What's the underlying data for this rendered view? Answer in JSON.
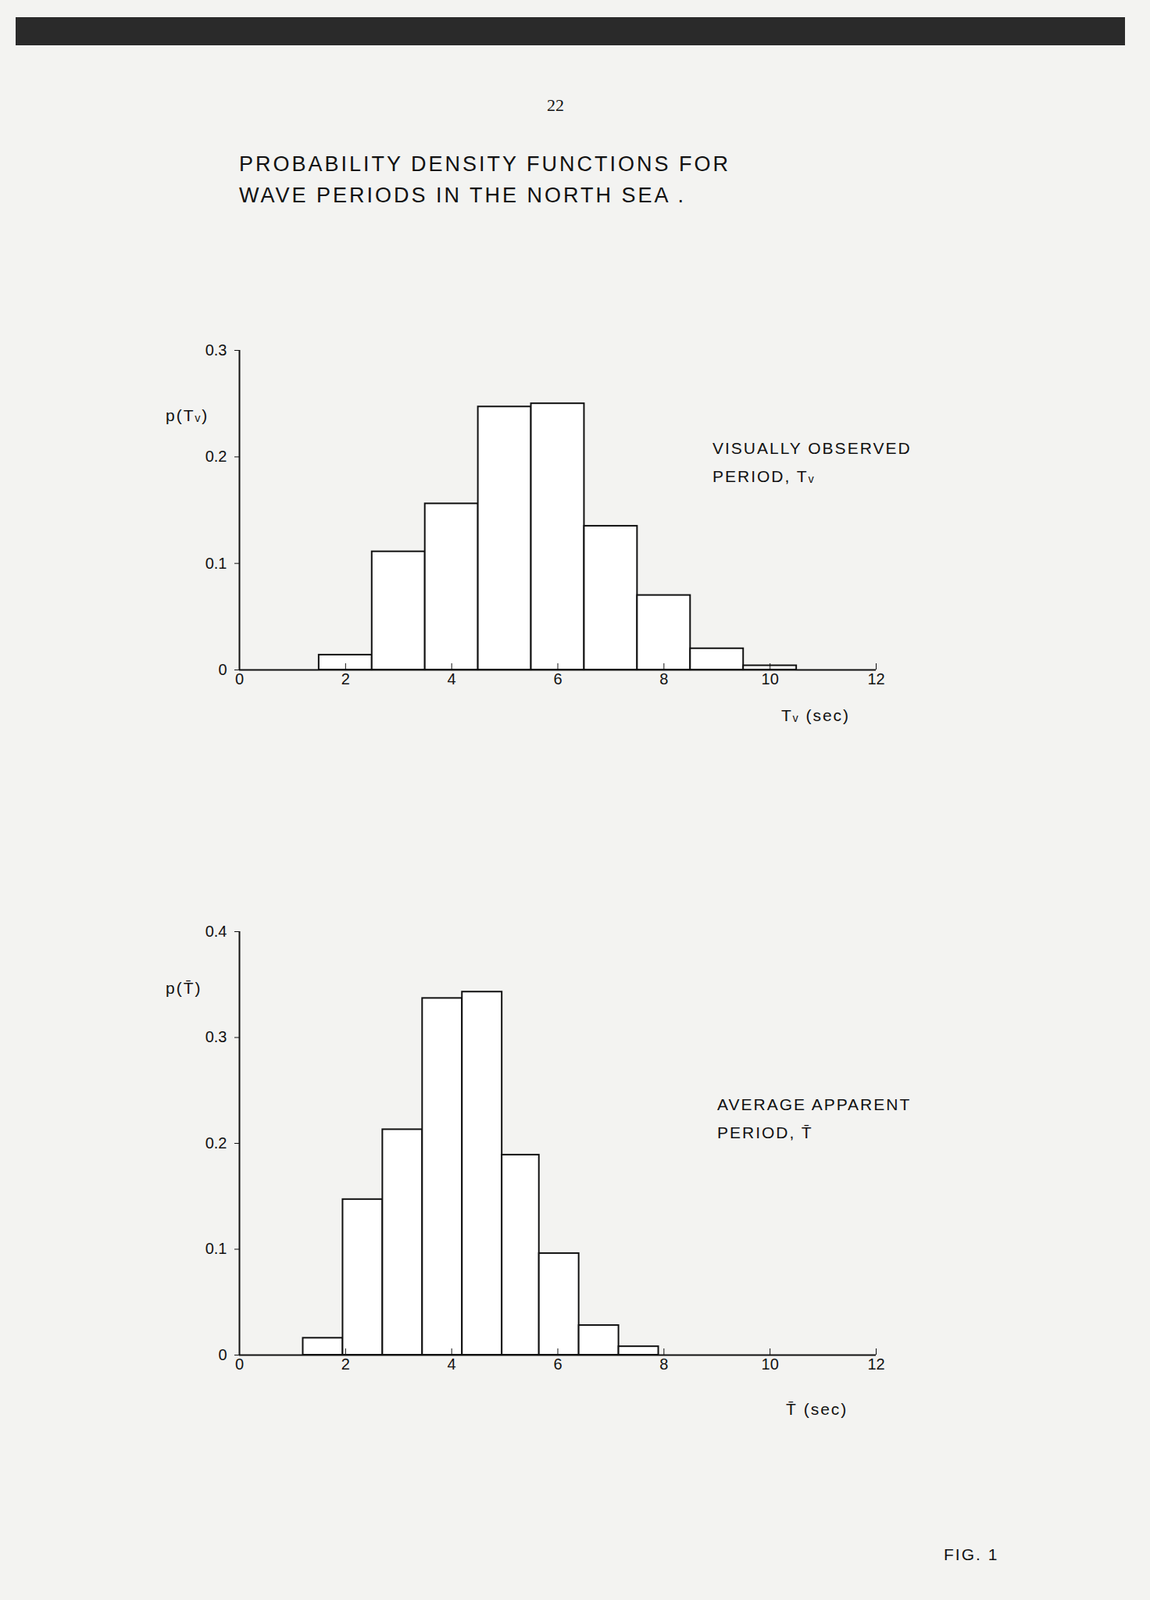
{
  "page_number": "22",
  "title": [
    "PROBABILITY  DENSITY  FUNCTIONS  FOR",
    "WAVE  PERIODS  IN  THE  NORTH  SEA ."
  ],
  "figure_label": "FIG. 1",
  "chart_data": [
    {
      "type": "histogram",
      "annotation": [
        "VISUALLY  OBSERVED",
        "PERIOD,  Tᵥ"
      ],
      "xlabel": "Tᵥ (sec)",
      "ylabel": "p(Tᵥ)",
      "bins": [
        1.5,
        2.5,
        3.5,
        4.5,
        5.5,
        6.5,
        7.5,
        8.5,
        9.5,
        10.5
      ],
      "values": [
        0.014,
        0.111,
        0.156,
        0.247,
        0.25,
        0.135,
        0.07,
        0.02,
        0.004
      ],
      "xlim": [
        0,
        12
      ],
      "xticks": [
        0,
        2,
        4,
        6,
        8,
        10,
        12
      ],
      "ylim": [
        0,
        0.3
      ],
      "yticks": [
        0,
        0.1,
        0.2,
        0.3
      ]
    },
    {
      "type": "histogram",
      "annotation": [
        "AVERAGE  APPARENT",
        "PERIOD,  T̄"
      ],
      "xlabel": "T̄ (sec)",
      "ylabel": "p(T̄)",
      "bins": [
        1.2,
        1.95,
        2.7,
        3.45,
        4.2,
        4.95,
        5.65,
        6.4,
        7.15,
        7.9
      ],
      "values": [
        0.016,
        0.147,
        0.213,
        0.337,
        0.343,
        0.189,
        0.096,
        0.028,
        0.008
      ],
      "xlim": [
        0,
        12
      ],
      "xticks": [
        0,
        2,
        4,
        6,
        8,
        10,
        12
      ],
      "ylim": [
        0,
        0.4
      ],
      "yticks": [
        0,
        0.1,
        0.2,
        0.3,
        0.4
      ]
    }
  ]
}
